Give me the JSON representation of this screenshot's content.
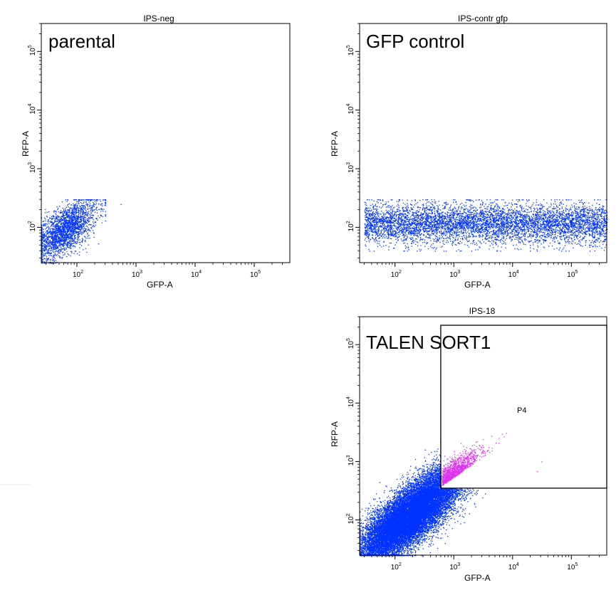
{
  "colors": {
    "population": "#0033ff",
    "gated_population": "#dd33ee",
    "axes": "#000000"
  },
  "chart_data": [
    {
      "type": "scatter",
      "title": "IPS-neg",
      "annotation": "parental",
      "xlabel": "GFP-A",
      "ylabel": "RFP-A",
      "x_scale": "log",
      "y_scale": "log",
      "xlim": [
        25,
        400000
      ],
      "ylim": [
        25,
        300000
      ],
      "x_ticks": [
        {
          "base": "10",
          "exp": "2",
          "value": 100
        },
        {
          "base": "10",
          "exp": "3",
          "value": 1000
        },
        {
          "base": "10",
          "exp": "4",
          "value": 10000
        },
        {
          "base": "10",
          "exp": "5",
          "value": 100000
        }
      ],
      "y_ticks": [
        {
          "base": "10",
          "exp": "2",
          "value": 100
        },
        {
          "base": "10",
          "exp": "3",
          "value": 1000
        },
        {
          "base": "10",
          "exp": "4",
          "value": 10000
        },
        {
          "base": "10",
          "exp": "5",
          "value": 100000
        }
      ],
      "population": {
        "x_range": [
          25,
          300
        ],
        "y_range": [
          25,
          300
        ],
        "center": [
          60,
          90
        ],
        "approx_events": 2500,
        "outliers": [
          [
            250,
            250
          ],
          [
            550,
            250
          ]
        ]
      }
    },
    {
      "type": "scatter",
      "title": "IPS-contr gfp",
      "annotation": "GFP control",
      "xlabel": "GFP-A",
      "ylabel": "RFP-A",
      "x_scale": "log",
      "y_scale": "log",
      "xlim": [
        25,
        400000
      ],
      "ylim": [
        25,
        300000
      ],
      "x_ticks": [
        {
          "base": "10",
          "exp": "2",
          "value": 100
        },
        {
          "base": "10",
          "exp": "3",
          "value": 1000
        },
        {
          "base": "10",
          "exp": "4",
          "value": 10000
        },
        {
          "base": "10",
          "exp": "5",
          "value": 100000
        }
      ],
      "y_ticks": [
        {
          "base": "10",
          "exp": "2",
          "value": 100
        },
        {
          "base": "10",
          "exp": "3",
          "value": 1000
        },
        {
          "base": "10",
          "exp": "4",
          "value": 10000
        },
        {
          "base": "10",
          "exp": "5",
          "value": 100000
        }
      ],
      "population": {
        "x_range": [
          30,
          400000
        ],
        "y_range": [
          40,
          300
        ],
        "center_y": 120,
        "approx_events": 6000
      }
    },
    {
      "type": "scatter",
      "title": "IPS-18",
      "annotation": "TALEN SORT1",
      "xlabel": "GFP-A",
      "ylabel": "RFP-A",
      "x_scale": "log",
      "y_scale": "log",
      "xlim": [
        25,
        400000
      ],
      "ylim": [
        25,
        300000
      ],
      "x_ticks": [
        {
          "base": "10",
          "exp": "2",
          "value": 100
        },
        {
          "base": "10",
          "exp": "3",
          "value": 1000
        },
        {
          "base": "10",
          "exp": "4",
          "value": 10000
        },
        {
          "base": "10",
          "exp": "5",
          "value": 100000
        }
      ],
      "y_ticks": [
        {
          "base": "10",
          "exp": "2",
          "value": 100
        },
        {
          "base": "10",
          "exp": "3",
          "value": 1000
        },
        {
          "base": "10",
          "exp": "4",
          "value": 10000
        },
        {
          "base": "10",
          "exp": "5",
          "value": 100000
        }
      ],
      "population": {
        "x_range": [
          25,
          5000
        ],
        "y_range": [
          25,
          3000
        ],
        "center": [
          180,
          120
        ],
        "approx_events": 20000
      },
      "gate": {
        "name": "P4",
        "x_min": 600,
        "x_max": 400000,
        "y_min": 350,
        "y_max": 300000,
        "color": "#dd33ee",
        "approx_events": 1200,
        "outliers": [
          [
            26000,
            690
          ],
          [
            31000,
            1000
          ]
        ]
      }
    }
  ]
}
